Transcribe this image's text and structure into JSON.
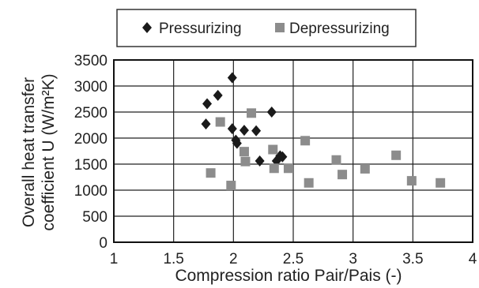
{
  "chart_data": {
    "type": "scatter",
    "xlabel": "Compression ratio Pair/Pais (-)",
    "ylabel_line1": "Overall heat transfer",
    "ylabel_line2": "coefficient U (W/m²K)",
    "xlim": [
      1,
      4
    ],
    "ylim": [
      0,
      3500
    ],
    "x_ticks": [
      1,
      1.5,
      2,
      2.5,
      3,
      3.5,
      4
    ],
    "x_tick_labels": [
      "1",
      "1.5",
      "2",
      "2.5",
      "3",
      "3.5",
      "4"
    ],
    "y_ticks": [
      0,
      500,
      1000,
      1500,
      2000,
      2500,
      3000,
      3500
    ],
    "y_tick_labels": [
      "0",
      "500",
      "1000",
      "1500",
      "2000",
      "2500",
      "3000",
      "3500"
    ],
    "grid": true,
    "legend_position": "top",
    "series": [
      {
        "name": "Pressurizing",
        "marker": "diamond",
        "color": "#1a1a1a",
        "points": [
          [
            1.77,
            2270
          ],
          [
            1.78,
            2660
          ],
          [
            1.87,
            2820
          ],
          [
            1.99,
            3160
          ],
          [
            1.99,
            2180
          ],
          [
            2.02,
            1960
          ],
          [
            2.03,
            1900
          ],
          [
            2.09,
            2150
          ],
          [
            2.19,
            2140
          ],
          [
            2.22,
            1560
          ],
          [
            2.32,
            2500
          ],
          [
            2.36,
            1560
          ],
          [
            2.39,
            1660
          ],
          [
            2.41,
            1640
          ]
        ]
      },
      {
        "name": "Depressurizing",
        "marker": "square",
        "color": "#8c8c8c",
        "points": [
          [
            1.81,
            1330
          ],
          [
            1.89,
            2310
          ],
          [
            1.98,
            1090
          ],
          [
            2.09,
            1740
          ],
          [
            2.1,
            1550
          ],
          [
            2.15,
            2480
          ],
          [
            2.33,
            1780
          ],
          [
            2.34,
            1420
          ],
          [
            2.46,
            1420
          ],
          [
            2.6,
            1950
          ],
          [
            2.63,
            1140
          ],
          [
            2.86,
            1580
          ],
          [
            2.91,
            1300
          ],
          [
            3.1,
            1410
          ],
          [
            3.36,
            1670
          ],
          [
            3.49,
            1180
          ],
          [
            3.73,
            1140
          ]
        ]
      }
    ]
  }
}
